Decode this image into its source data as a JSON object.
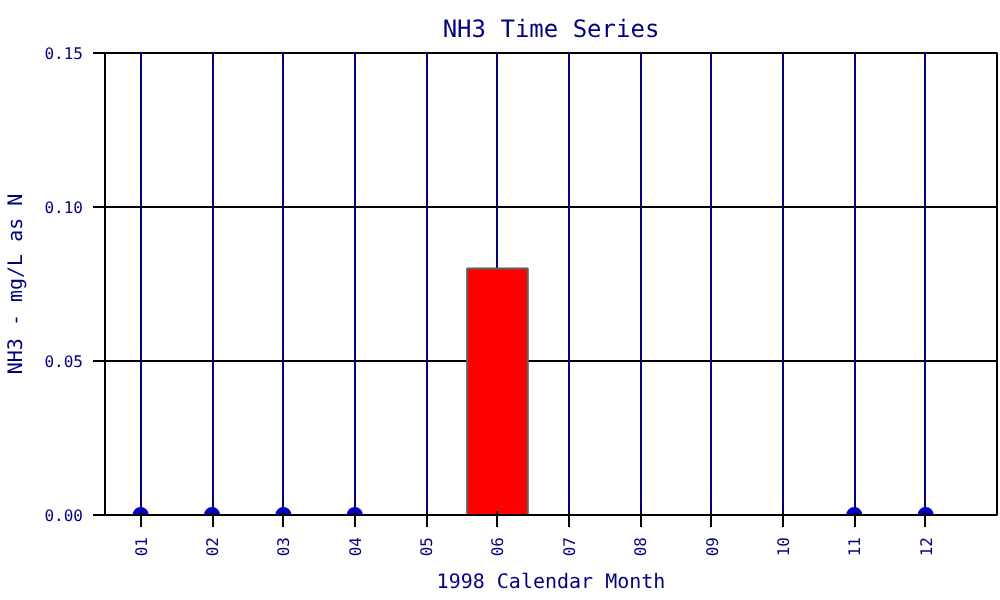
{
  "chart_data": {
    "type": "bar",
    "title": "NH3 Time Series",
    "xlabel": "1998 Calendar Month",
    "ylabel": "NH3 - mg/L as N",
    "categories": [
      "01",
      "02",
      "03",
      "04",
      "05",
      "06",
      "07",
      "08",
      "09",
      "10",
      "11",
      "12"
    ],
    "series": [
      {
        "color": "#ff0000",
        "values": [
          null,
          null,
          null,
          null,
          null,
          0.08,
          null,
          null,
          null,
          null,
          null,
          null
        ]
      },
      {
        "type": "scatter",
        "color": "#0000cc",
        "values": [
          0,
          0,
          0,
          0,
          null,
          null,
          null,
          null,
          null,
          null,
          0,
          0
        ]
      }
    ],
    "ylim": [
      0,
      0.15
    ],
    "yticks": [
      {
        "value": 0,
        "label": "0.00"
      },
      0.05,
      {
        "value": 0.1,
        "label": "0.10"
      },
      0.15
    ],
    "grid": true,
    "marker": "circle"
  }
}
